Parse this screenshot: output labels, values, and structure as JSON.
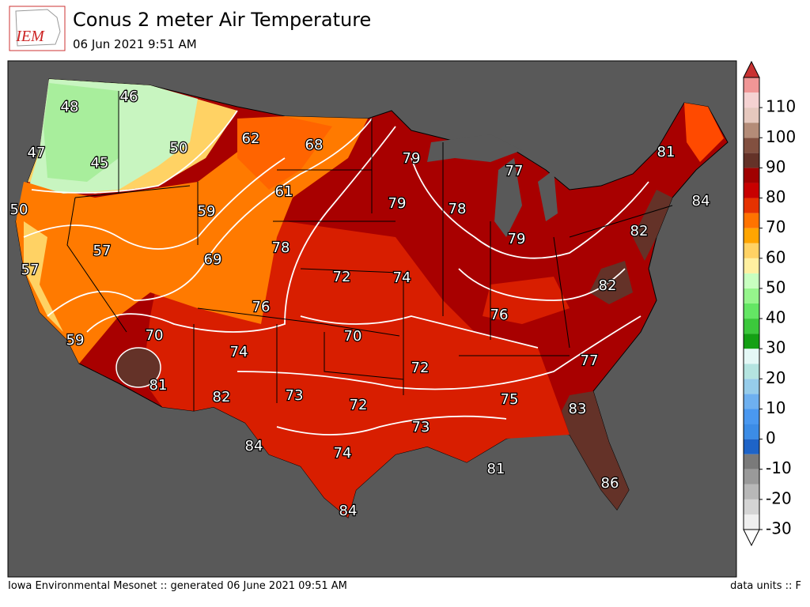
{
  "header": {
    "logo": "IEM",
    "title": "Conus 2 meter Air Temperature",
    "subtitle": "06 Jun 2021 9:51 AM"
  },
  "map": {
    "contour_labels": [
      48,
      46,
      47,
      45,
      50,
      62,
      68,
      79,
      77,
      50,
      59,
      61,
      79,
      78,
      57,
      69,
      78,
      72,
      74,
      79,
      82,
      84,
      81,
      57,
      76,
      76,
      82,
      59,
      70,
      70,
      74,
      72,
      77,
      81,
      82,
      73,
      72,
      75,
      83,
      73,
      84,
      74,
      81,
      86,
      84
    ]
  },
  "colorbar": {
    "lim": [
      -30,
      120
    ],
    "ticks": [
      -30,
      -20,
      -10,
      0,
      10,
      20,
      30,
      40,
      50,
      60,
      70,
      80,
      90,
      100,
      110
    ],
    "colors": [
      "#efefef",
      "#d4d4d4",
      "#b8b8b8",
      "#9a9a9a",
      "#7a7a7a",
      "#1e64c8",
      "#3c8ce6",
      "#4a98f0",
      "#6eb0f0",
      "#96ccea",
      "#b4e4e0",
      "#e4f8f6",
      "#14a014",
      "#3cc83c",
      "#64e664",
      "#96f58c",
      "#c8ffc0",
      "#fff0a0",
      "#ffd264",
      "#ffa500",
      "#ff7300",
      "#e63200",
      "#c80000",
      "#a00000",
      "#643228",
      "#825040",
      "#b48c78",
      "#e6c8be",
      "#f5d2d2",
      "#f09696"
    ]
  },
  "footer": {
    "left": "Iowa Environmental Mesonet :: generated 06 June 2021 09:51 AM",
    "right": "data units :: F"
  }
}
